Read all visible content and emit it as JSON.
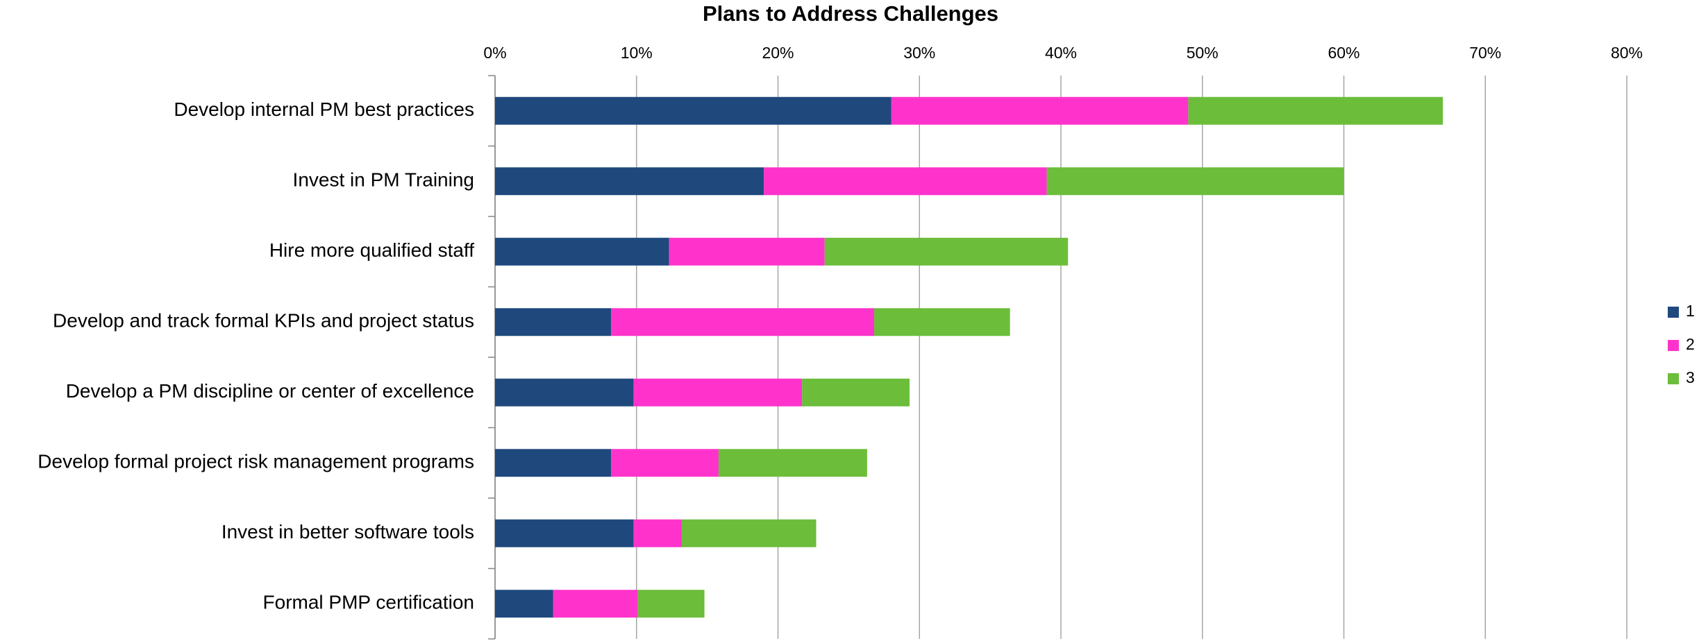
{
  "chart_data": {
    "type": "stacked_bar_horizontal",
    "title": "Plans to Address Challenges",
    "categories": [
      "Develop internal PM best practices",
      "Invest in PM Training",
      "Hire more qualified staff",
      "Develop and track formal KPIs and project status",
      "Develop a PM discipline or center of excellence",
      "Develop formal project risk management programs",
      "Invest in better software tools",
      "Formal PMP certification"
    ],
    "series": [
      {
        "name": "1",
        "color": "#1f497d",
        "values": [
          28,
          19,
          12.3,
          8.2,
          9.8,
          8.2,
          9.8,
          4.1
        ]
      },
      {
        "name": "2",
        "color": "#ff33cc",
        "values": [
          21,
          20,
          11,
          18.6,
          11.9,
          7.6,
          3.4,
          6
        ]
      },
      {
        "name": "3",
        "color": "#6bbd3a",
        "values": [
          18,
          21,
          17.2,
          9.6,
          7.6,
          10.5,
          9.5,
          4.7
        ]
      }
    ],
    "xlim": [
      0,
      80
    ],
    "xticks": [
      {
        "value": 0,
        "label": "0%"
      },
      {
        "value": 10,
        "label": "10%"
      },
      {
        "value": 20,
        "label": "20%"
      },
      {
        "value": 30,
        "label": "30%"
      },
      {
        "value": 40,
        "label": "40%"
      },
      {
        "value": 50,
        "label": "50%"
      },
      {
        "value": 60,
        "label": "60%"
      },
      {
        "value": 70,
        "label": "70%"
      },
      {
        "value": 80,
        "label": "80%"
      }
    ],
    "grid": true,
    "legend": "right"
  }
}
